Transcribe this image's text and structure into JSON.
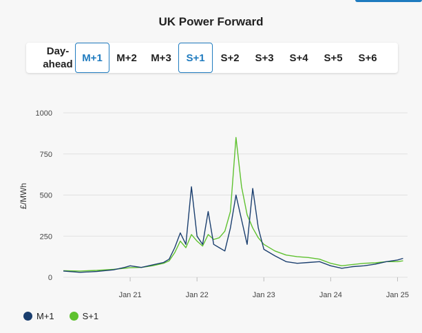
{
  "header": {
    "title": "UK Power Forward"
  },
  "tabs": [
    {
      "label": "Day-\nahead",
      "active": false
    },
    {
      "label": "M+1",
      "active": true
    },
    {
      "label": "M+2",
      "active": false
    },
    {
      "label": "M+3",
      "active": false
    },
    {
      "label": "S+1",
      "active": true
    },
    {
      "label": "S+2",
      "active": false
    },
    {
      "label": "S+3",
      "active": false
    },
    {
      "label": "S+4",
      "active": false
    },
    {
      "label": "S+5",
      "active": false
    },
    {
      "label": "S+6",
      "active": false
    }
  ],
  "colors": {
    "accent": "#1f7bbf",
    "m1": "#1a3e6e",
    "s1": "#5ec12e",
    "grid": "#e0e0e0"
  },
  "chart_data": {
    "type": "line",
    "title": "",
    "xlabel": "",
    "ylabel": "£/MWh",
    "ylim": [
      0,
      1000
    ],
    "yticks": [
      "0",
      "250",
      "500",
      "750",
      "1000"
    ],
    "xticks": [
      "Jan 21",
      "Jan 22",
      "Jan 23",
      "Jan 24",
      "Jan 25"
    ],
    "grid": true,
    "legend_position": "bottom-left",
    "series": [
      {
        "name": "M+1",
        "color": "#1a3e6e",
        "points": [
          [
            "2020-01",
            38
          ],
          [
            "2020-04",
            30
          ],
          [
            "2020-07",
            35
          ],
          [
            "2020-10",
            45
          ],
          [
            "2020-12",
            60
          ],
          [
            "2021-01",
            70
          ],
          [
            "2021-03",
            60
          ],
          [
            "2021-05",
            75
          ],
          [
            "2021-07",
            90
          ],
          [
            "2021-08",
            110
          ],
          [
            "2021-09",
            180
          ],
          [
            "2021-10",
            270
          ],
          [
            "2021-11",
            200
          ],
          [
            "2021-12",
            550
          ],
          [
            "2022-01",
            250
          ],
          [
            "2022-02",
            200
          ],
          [
            "2022-03",
            400
          ],
          [
            "2022-04",
            200
          ],
          [
            "2022-05",
            180
          ],
          [
            "2022-06",
            160
          ],
          [
            "2022-07",
            300
          ],
          [
            "2022-08",
            500
          ],
          [
            "2022-09",
            350
          ],
          [
            "2022-10",
            200
          ],
          [
            "2022-11",
            540
          ],
          [
            "2022-12",
            300
          ],
          [
            "2023-01",
            170
          ],
          [
            "2023-03",
            130
          ],
          [
            "2023-05",
            95
          ],
          [
            "2023-07",
            85
          ],
          [
            "2023-09",
            90
          ],
          [
            "2023-11",
            95
          ],
          [
            "2024-01",
            70
          ],
          [
            "2024-03",
            55
          ],
          [
            "2024-05",
            65
          ],
          [
            "2024-07",
            70
          ],
          [
            "2024-09",
            80
          ],
          [
            "2024-11",
            95
          ],
          [
            "2025-01",
            105
          ],
          [
            "2025-02",
            115
          ]
        ]
      },
      {
        "name": "S+1",
        "color": "#5ec12e",
        "points": [
          [
            "2020-01",
            40
          ],
          [
            "2020-04",
            38
          ],
          [
            "2020-07",
            42
          ],
          [
            "2020-10",
            48
          ],
          [
            "2020-12",
            55
          ],
          [
            "2021-01",
            58
          ],
          [
            "2021-03",
            60
          ],
          [
            "2021-05",
            70
          ],
          [
            "2021-07",
            85
          ],
          [
            "2021-08",
            100
          ],
          [
            "2021-09",
            150
          ],
          [
            "2021-10",
            220
          ],
          [
            "2021-11",
            180
          ],
          [
            "2021-12",
            260
          ],
          [
            "2022-01",
            220
          ],
          [
            "2022-02",
            190
          ],
          [
            "2022-03",
            260
          ],
          [
            "2022-04",
            230
          ],
          [
            "2022-05",
            240
          ],
          [
            "2022-06",
            280
          ],
          [
            "2022-07",
            400
          ],
          [
            "2022-08",
            850
          ],
          [
            "2022-09",
            550
          ],
          [
            "2022-10",
            380
          ],
          [
            "2022-11",
            300
          ],
          [
            "2022-12",
            240
          ],
          [
            "2023-01",
            200
          ],
          [
            "2023-03",
            160
          ],
          [
            "2023-05",
            135
          ],
          [
            "2023-07",
            125
          ],
          [
            "2023-09",
            120
          ],
          [
            "2023-11",
            110
          ],
          [
            "2024-01",
            85
          ],
          [
            "2024-03",
            70
          ],
          [
            "2024-05",
            78
          ],
          [
            "2024-07",
            85
          ],
          [
            "2024-09",
            88
          ],
          [
            "2024-11",
            95
          ],
          [
            "2025-01",
            95
          ],
          [
            "2025-02",
            100
          ]
        ]
      }
    ]
  }
}
